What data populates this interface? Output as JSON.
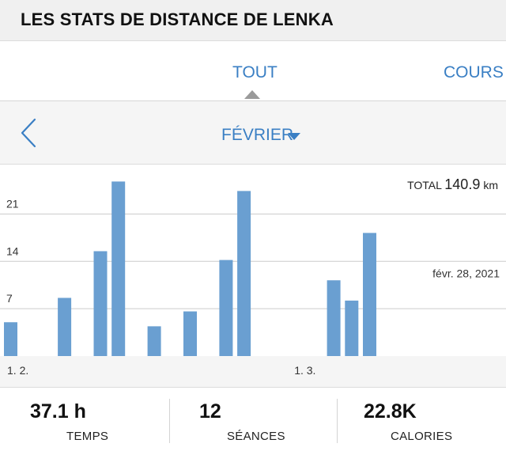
{
  "header": {
    "title": "LES STATS DE DISTANCE DE LENKA"
  },
  "tabs": [
    {
      "label": "TOUT",
      "selected": true
    },
    {
      "label": "COURS",
      "selected": false
    }
  ],
  "month_selector": {
    "label": "FÉVRIER",
    "back_icon": "chevron-left-icon",
    "dropdown_icon": "caret-down-icon"
  },
  "chart_data": {
    "type": "bar",
    "unit": "km",
    "total_prefix": "TOTAL",
    "total_value": "140.9",
    "total_unit": "km",
    "y_ticks": [
      {
        "value": 7,
        "label": "7"
      },
      {
        "value": 14,
        "label": "14"
      },
      {
        "value": 21,
        "label": "21"
      }
    ],
    "ylim": [
      0,
      26.5
    ],
    "xlim": [
      1,
      31
    ],
    "x_ticks": [
      {
        "x": 1,
        "label": "1. 2."
      },
      {
        "x": 17,
        "label": "1. 3."
      }
    ],
    "reference": {
      "y": 14,
      "label": "févr. 28, 2021"
    },
    "bar_slots": [
      1,
      4,
      6,
      7,
      9,
      11,
      13,
      14,
      19,
      20,
      21
    ],
    "values": [
      5.0,
      8.6,
      15.5,
      25.8,
      4.4,
      6.6,
      14.2,
      24.4,
      11.2,
      8.2,
      18.2
    ],
    "grid": true,
    "bar_color": "#6a9fd1",
    "grid_color": "#cccccc"
  },
  "stats": [
    {
      "value": "37.1 h",
      "label": "TEMPS"
    },
    {
      "value": "12",
      "label": "SÉANCES"
    },
    {
      "value": "22.8K",
      "label": "CALORIES"
    }
  ]
}
